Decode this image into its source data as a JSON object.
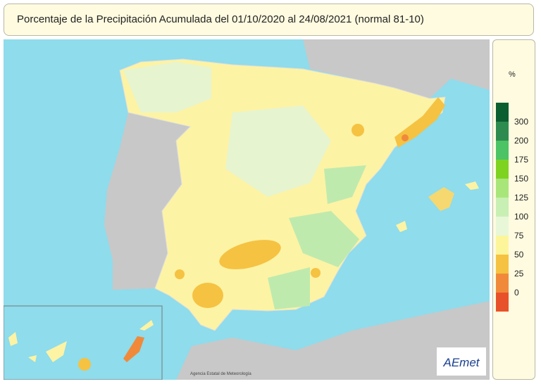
{
  "header": {
    "title": "Porcentaje de la Precipitación Acumulada del 01/10/2020 al 24/08/2021 (normal 81-10)"
  },
  "legend": {
    "unit": "%",
    "labels": [
      300,
      200,
      175,
      150,
      125,
      100,
      75,
      50,
      25,
      0
    ],
    "colors": [
      "#0b5e2f",
      "#2e8b4f",
      "#4cc364",
      "#7ed321",
      "#a9e67a",
      "#c8f0b4",
      "#e8f7d8",
      "#fdf59a",
      "#f5c242",
      "#f08a3a",
      "#e8522a"
    ]
  },
  "credit": "Agencia Estatal de Meteorología",
  "logo": "AEmet"
}
